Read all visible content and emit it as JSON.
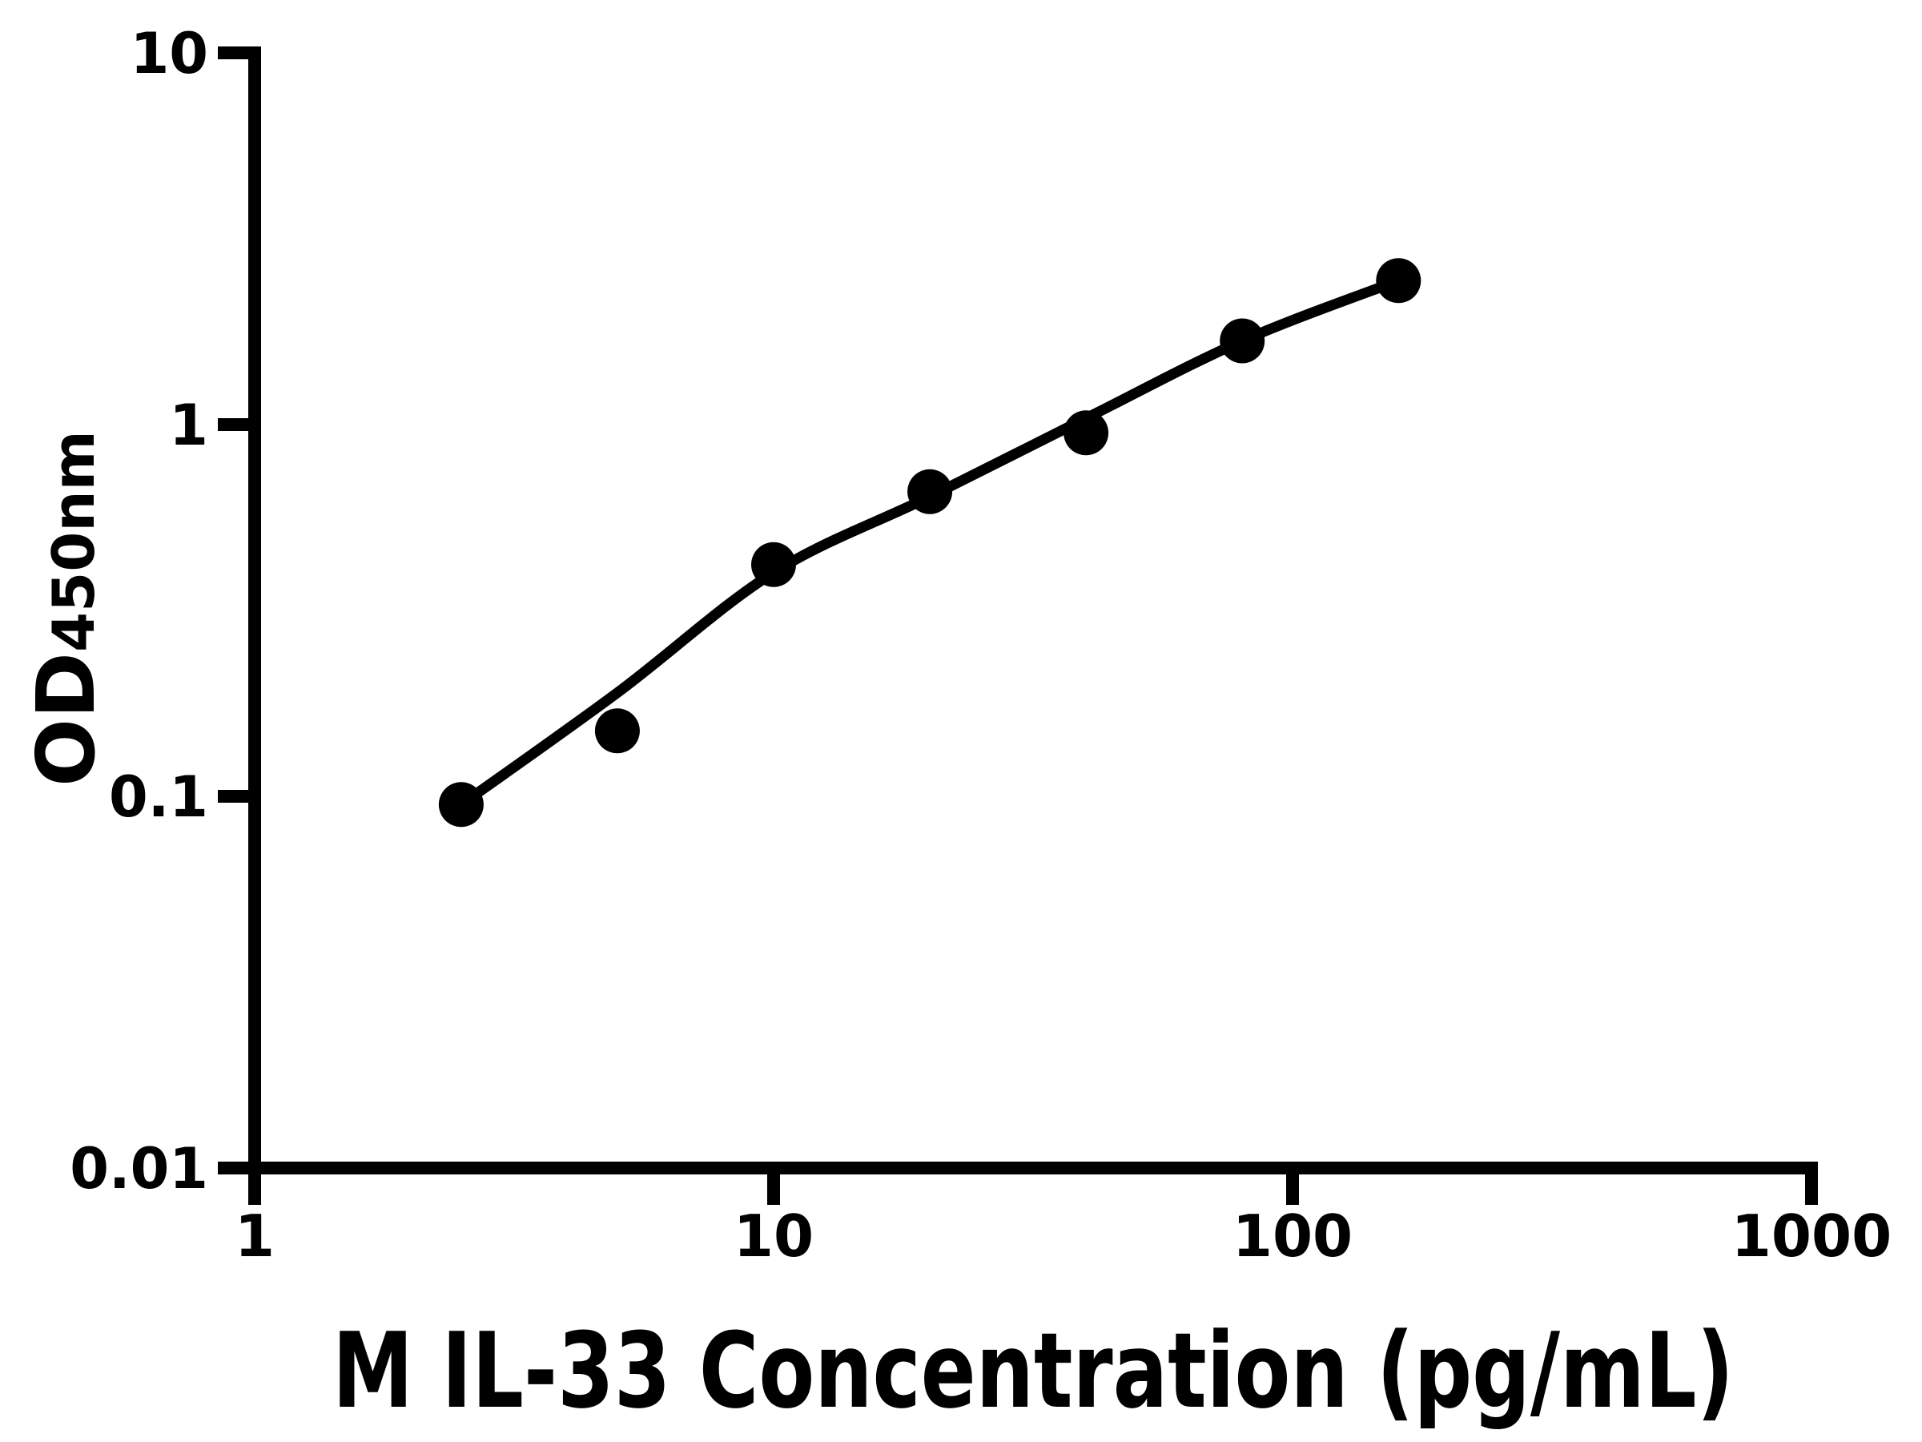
{
  "chart_data": {
    "type": "scatter",
    "title": "",
    "xlabel": "M IL-33 Concentration (pg/mL)",
    "ylabel_main": "OD",
    "ylabel_subscript": "450nm",
    "x_scale": "log",
    "y_scale": "log",
    "xlim": [
      1,
      1000
    ],
    "ylim": [
      0.01,
      10
    ],
    "grid": false,
    "legend": false,
    "x_ticks": [
      {
        "value": 1,
        "label": "1"
      },
      {
        "value": 10,
        "label": "10"
      },
      {
        "value": 100,
        "label": "100"
      },
      {
        "value": 1000,
        "label": "1000"
      }
    ],
    "y_ticks": [
      {
        "value": 10,
        "label": "10"
      },
      {
        "value": 1,
        "label": "1"
      },
      {
        "value": 0.1,
        "label": "0.1"
      },
      {
        "value": 0.01,
        "label": "0.01"
      }
    ],
    "series": [
      {
        "name": "standard-points",
        "marker": "filled-circle",
        "color": "#000000",
        "points": [
          {
            "x": 2.5,
            "y": 0.095
          },
          {
            "x": 5,
            "y": 0.15
          },
          {
            "x": 10,
            "y": 0.42
          },
          {
            "x": 20,
            "y": 0.66
          },
          {
            "x": 40,
            "y": 0.95
          },
          {
            "x": 80,
            "y": 1.68
          },
          {
            "x": 160,
            "y": 2.44
          }
        ]
      }
    ],
    "fit_curve": {
      "name": "fitted-standard-curve",
      "color": "#000000",
      "points": [
        {
          "x": 2.5,
          "y": 0.095
        },
        {
          "x": 5,
          "y": 0.19
        },
        {
          "x": 10,
          "y": 0.4
        },
        {
          "x": 20,
          "y": 0.64
        },
        {
          "x": 40,
          "y": 1.04
        },
        {
          "x": 80,
          "y": 1.68
        },
        {
          "x": 160,
          "y": 2.44
        }
      ]
    },
    "colors": {
      "axis": "#000000",
      "marker": "#000000",
      "curve": "#000000",
      "background": "#ffffff"
    }
  }
}
